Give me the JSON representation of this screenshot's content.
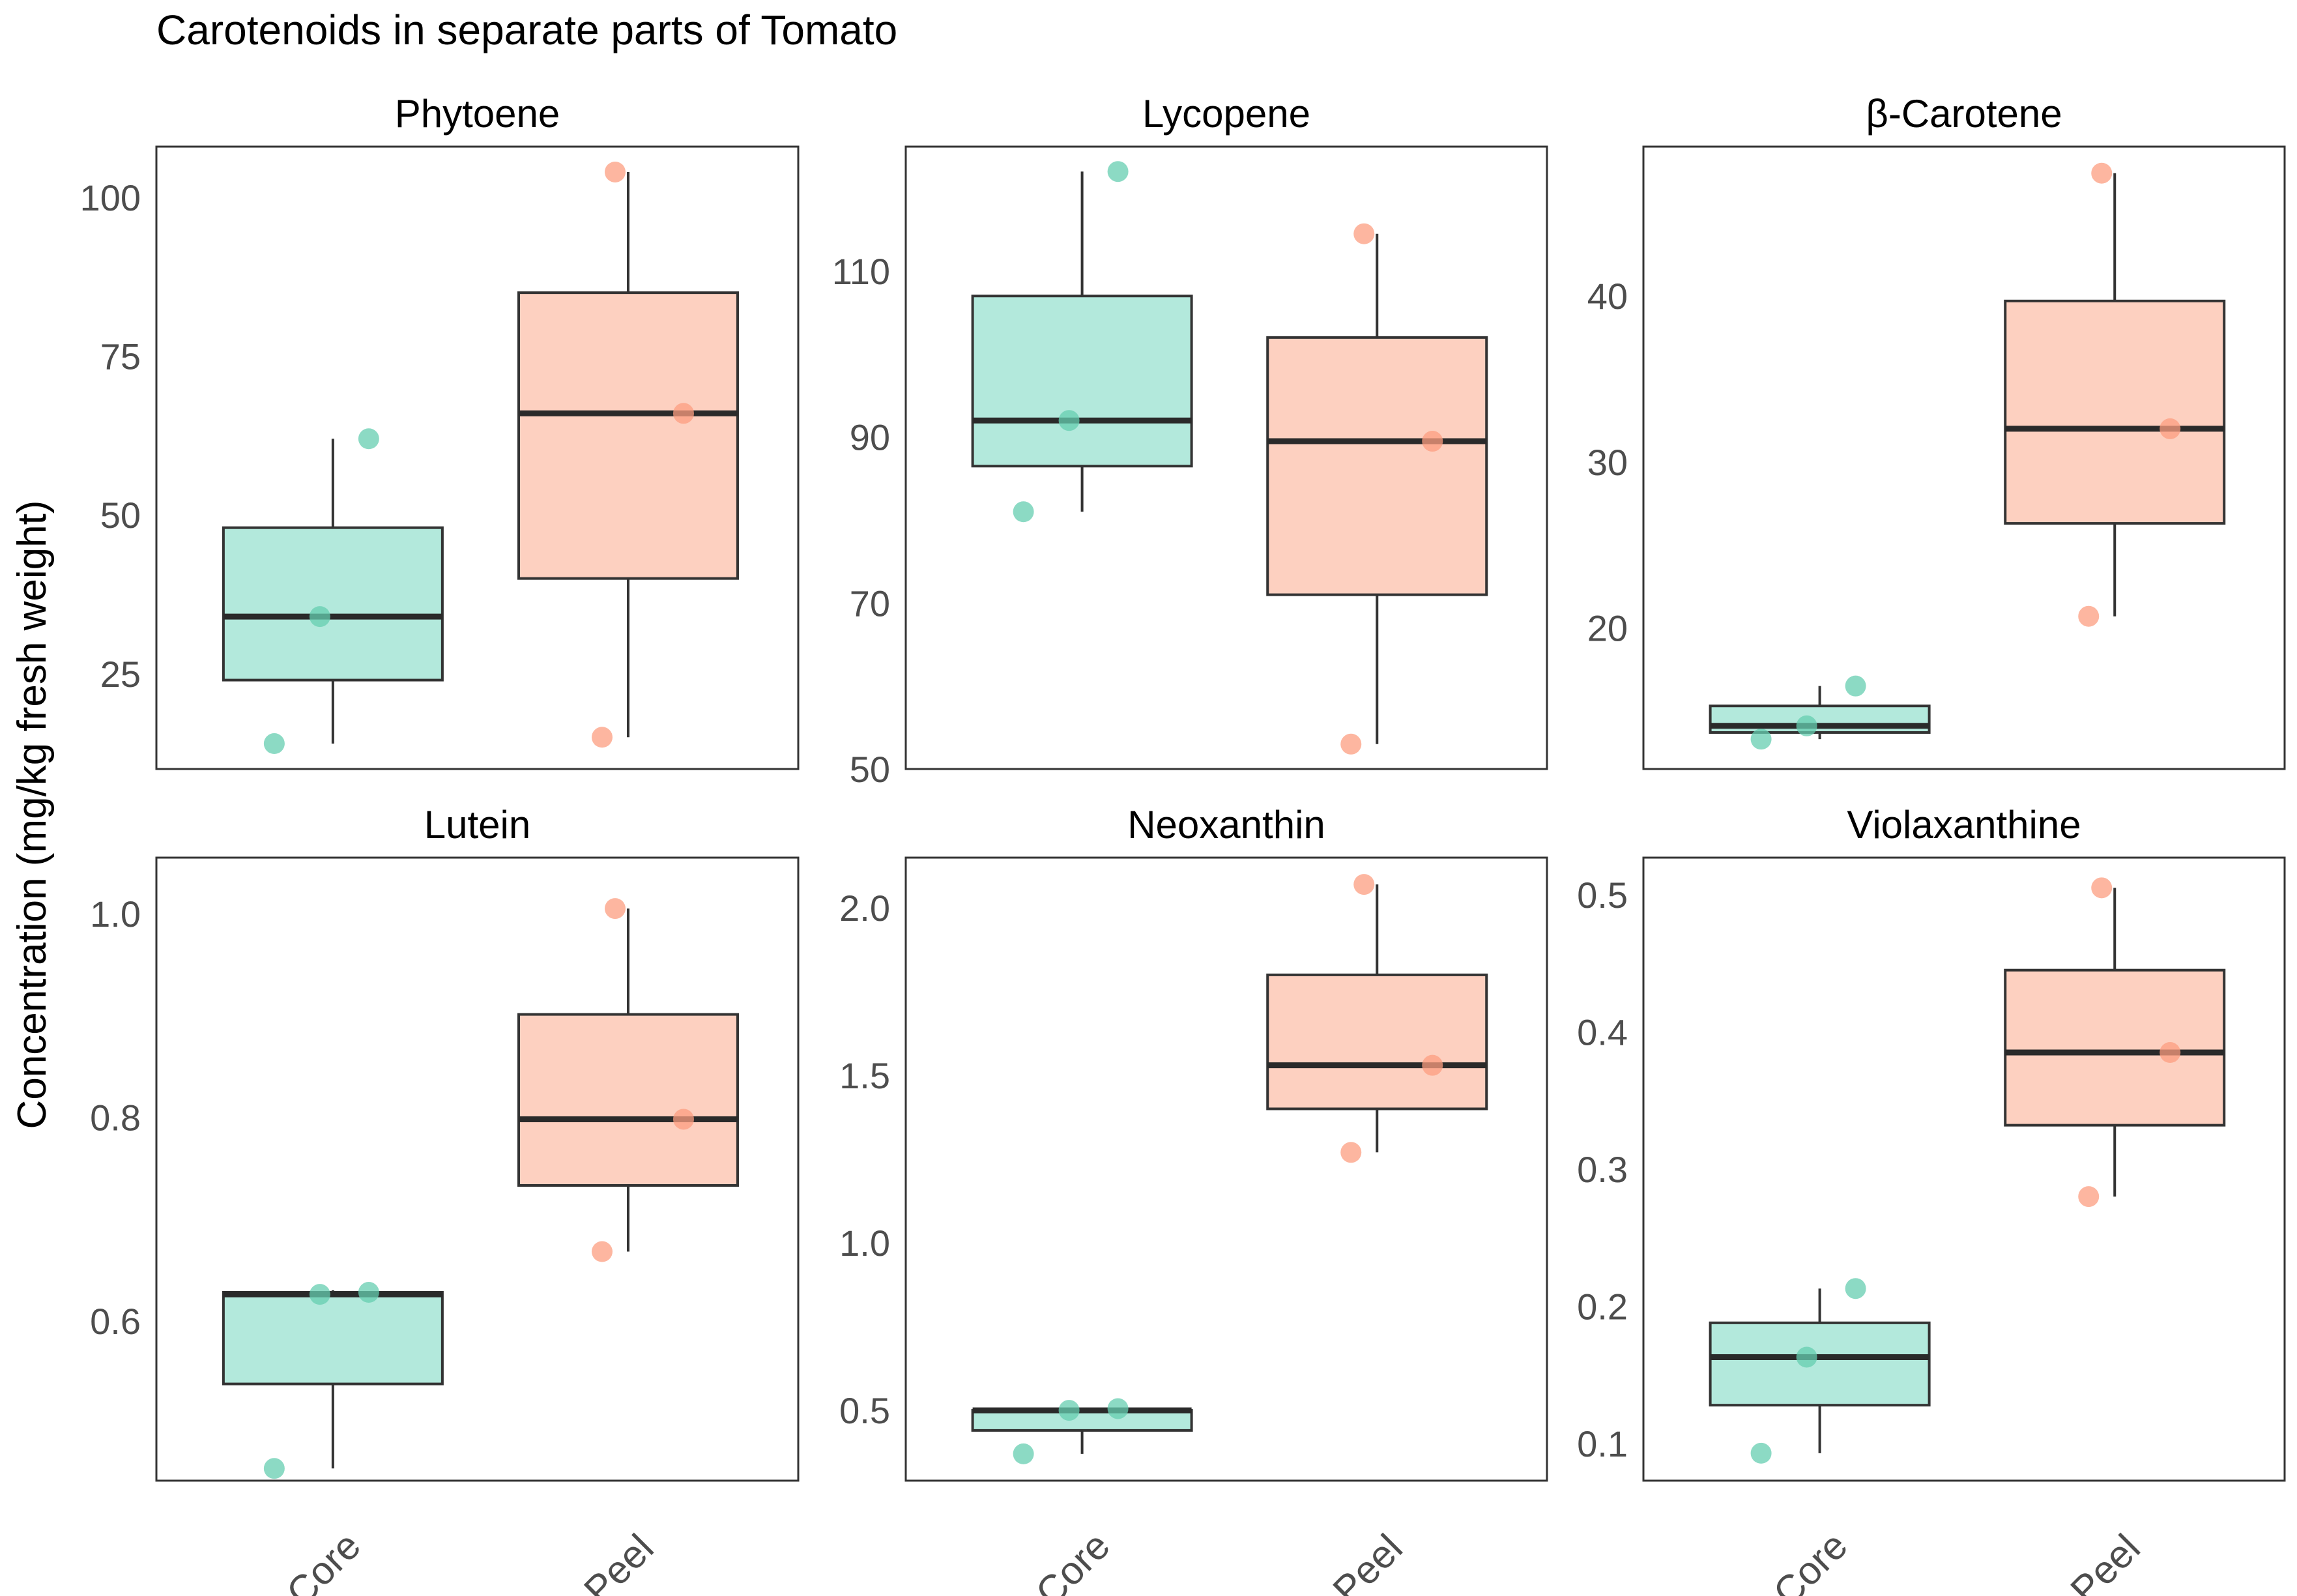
{
  "chart_data": {
    "type": "boxplot",
    "title": "Carotenoids in separate parts of Tomato",
    "ylabel": "Concentration (mg/kg fresh weight)",
    "xlabel": "",
    "categories": [
      "Core",
      "Peel"
    ],
    "colors": {
      "Core": {
        "fill": "#b3e9dc",
        "point": "#66cdb0"
      },
      "Peel": {
        "fill": "#fdd0c0",
        "point": "#fc9e80"
      },
      "stroke": "#333333",
      "frame": "#333333"
    },
    "panels": [
      {
        "name": "Phytoene",
        "ylim": [
          10,
          108
        ],
        "yticks": [
          25,
          50,
          75,
          100
        ],
        "ytick_labels": [
          "25",
          "50",
          "75",
          "100"
        ],
        "groups": [
          {
            "category": "Core",
            "box": {
              "min": 14,
              "q1": 24,
              "median": 34,
              "q3": 48,
              "max": 62
            },
            "points": [
              14,
              34,
              62
            ]
          },
          {
            "category": "Peel",
            "box": {
              "min": 15,
              "q1": 40,
              "median": 66,
              "q3": 85,
              "max": 104
            },
            "points": [
              15,
              66,
              104
            ]
          }
        ]
      },
      {
        "name": "Lycopene",
        "ylim": [
          50,
          125
        ],
        "yticks": [
          50,
          70,
          90,
          110
        ],
        "ytick_labels": [
          "50",
          "70",
          "90",
          "110"
        ],
        "groups": [
          {
            "category": "Core",
            "box": {
              "min": 81,
              "q1": 86.5,
              "median": 92,
              "q3": 107,
              "max": 122
            },
            "points": [
              81,
              92,
              122
            ]
          },
          {
            "category": "Peel",
            "box": {
              "min": 53,
              "q1": 71,
              "median": 89.5,
              "q3": 102,
              "max": 114.5
            },
            "points": [
              53,
              89.5,
              114.5
            ]
          }
        ]
      },
      {
        "name": "β-Carotene",
        "ylim": [
          11.5,
          49
        ],
        "yticks": [
          20,
          30,
          40
        ],
        "ytick_labels": [
          "20",
          "30",
          "40"
        ],
        "groups": [
          {
            "category": "Core",
            "box": {
              "min": 13.3,
              "q1": 13.7,
              "median": 14.1,
              "q3": 15.3,
              "max": 16.5
            },
            "points": [
              13.3,
              14.1,
              16.5
            ]
          },
          {
            "category": "Peel",
            "box": {
              "min": 20.7,
              "q1": 26.3,
              "median": 32,
              "q3": 39.7,
              "max": 47.4
            },
            "points": [
              20.7,
              32,
              47.4
            ]
          }
        ]
      },
      {
        "name": "Lutein",
        "ylim": [
          0.443,
          1.055
        ],
        "yticks": [
          0.6,
          0.8,
          1.0
        ],
        "ytick_labels": [
          "0.6",
          "0.8",
          "1.0"
        ],
        "groups": [
          {
            "category": "Core",
            "box": {
              "min": 0.455,
              "q1": 0.538,
              "median": 0.626,
              "q3": 0.628,
              "max": 0.63
            },
            "points": [
              0.455,
              0.626,
              0.628
            ]
          },
          {
            "category": "Peel",
            "box": {
              "min": 0.668,
              "q1": 0.733,
              "median": 0.798,
              "q3": 0.901,
              "max": 1.005
            },
            "points": [
              0.668,
              0.798,
              1.005
            ]
          }
        ]
      },
      {
        "name": "Neoxanthin",
        "ylim": [
          0.29,
          2.15
        ],
        "yticks": [
          0.5,
          1.0,
          1.5,
          2.0
        ],
        "ytick_labels": [
          "0.5",
          "1.0",
          "1.5",
          "2.0"
        ],
        "groups": [
          {
            "category": "Core",
            "box": {
              "min": 0.37,
              "q1": 0.44,
              "median": 0.5,
              "q3": 0.5,
              "max": 0.505
            },
            "points": [
              0.37,
              0.5,
              0.505
            ]
          },
          {
            "category": "Peel",
            "box": {
              "min": 1.27,
              "q1": 1.4,
              "median": 1.53,
              "q3": 1.8,
              "max": 2.07
            },
            "points": [
              1.27,
              1.53,
              2.07
            ]
          }
        ]
      },
      {
        "name": "Violaxanthine",
        "ylim": [
          0.073,
          0.527
        ],
        "yticks": [
          0.1,
          0.2,
          0.3,
          0.4,
          0.5
        ],
        "ytick_labels": [
          "0.1",
          "0.2",
          "0.3",
          "0.4",
          "0.5"
        ],
        "groups": [
          {
            "category": "Core",
            "box": {
              "min": 0.093,
              "q1": 0.128,
              "median": 0.163,
              "q3": 0.188,
              "max": 0.213
            },
            "points": [
              0.093,
              0.163,
              0.213
            ]
          },
          {
            "category": "Peel",
            "box": {
              "min": 0.28,
              "q1": 0.332,
              "median": 0.385,
              "q3": 0.445,
              "max": 0.505
            },
            "points": [
              0.28,
              0.385,
              0.505
            ]
          }
        ]
      }
    ]
  }
}
